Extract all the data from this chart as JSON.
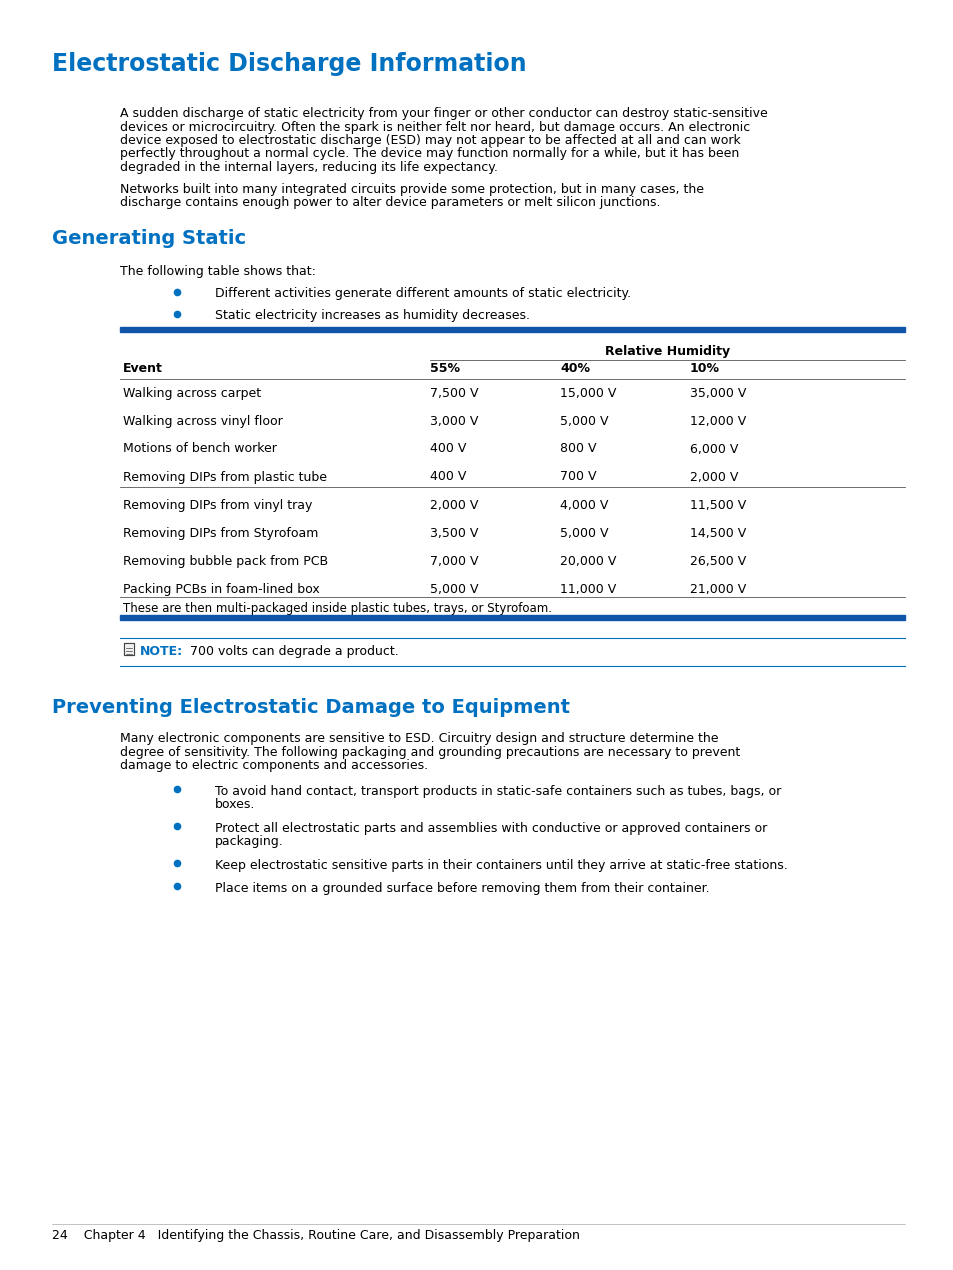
{
  "title": "Electrostatic Discharge Information",
  "title_color": "#0070C0",
  "title_fontsize": 17,
  "bg_color": "#ffffff",
  "body_color": "#000000",
  "body_fontsize": 9.0,
  "section2_title": "Generating Static",
  "section3_title": "Preventing Electrostatic Damage to Equipment",
  "section_title_color": "#0070C0",
  "section_title_fontsize": 14,
  "para1_lines": [
    "A sudden discharge of static electricity from your finger or other conductor can destroy static-sensitive",
    "devices or microcircuitry. Often the spark is neither felt nor heard, but damage occurs. An electronic",
    "device exposed to electrostatic discharge (ESD) may not appear to be affected at all and can work",
    "perfectly throughout a normal cycle. The device may function normally for a while, but it has been",
    "degraded in the internal layers, reducing its life expectancy."
  ],
  "para2_lines": [
    "Networks built into many integrated circuits provide some protection, but in many cases, the",
    "discharge contains enough power to alter device parameters or melt silicon junctions."
  ],
  "table_intro": "The following table shows that:",
  "bullet1": "Different activities generate different amounts of static electricity.",
  "bullet2": "Static electricity increases as humidity decreases.",
  "table_header_label": "Relative Humidity",
  "table_col0": "Event",
  "table_col1": "55%",
  "table_col2": "40%",
  "table_col3": "10%",
  "table_rows": [
    [
      "Walking across carpet",
      "7,500 V",
      "15,000 V",
      "35,000 V"
    ],
    [
      "Walking across vinyl floor",
      "3,000 V",
      "5,000 V",
      "12,000 V"
    ],
    [
      "Motions of bench worker",
      "400 V",
      "800 V",
      "6,000 V"
    ],
    [
      "Removing DIPs from plastic tube",
      "400 V",
      "700 V",
      "2,000 V"
    ],
    [
      "Removing DIPs from vinyl tray",
      "2,000 V",
      "4,000 V",
      "11,500 V"
    ],
    [
      "Removing DIPs from Styrofoam",
      "3,500 V",
      "5,000 V",
      "14,500 V"
    ],
    [
      "Removing bubble pack from PCB",
      "7,000 V",
      "20,000 V",
      "26,500 V"
    ],
    [
      "Packing PCBs in foam-lined box",
      "5,000 V",
      "11,000 V",
      "21,000 V"
    ]
  ],
  "table_footnote": "These are then multi-packaged inside plastic tubes, trays, or Styrofoam.",
  "note_label": "NOTE:",
  "note_text": "  700 volts can degrade a product.",
  "section3_para_lines": [
    "Many electronic components are sensitive to ESD. Circuitry design and structure determine the",
    "degree of sensitivity. The following packaging and grounding precautions are necessary to prevent",
    "damage to electric components and accessories."
  ],
  "section3_bullets": [
    [
      "To avoid hand contact, transport products in static-safe containers such as tubes, bags, or",
      "boxes."
    ],
    [
      "Protect all electrostatic parts and assemblies with conductive or approved containers or",
      "packaging."
    ],
    [
      "Keep electrostatic sensitive parts in their containers until they arrive at static-free stations."
    ],
    [
      "Place items on a grounded surface before removing them from their container."
    ]
  ],
  "footer_text": "24    Chapter 4   Identifying the Chassis, Routine Care, and Disassembly Preparation",
  "blue_color": "#0070C0",
  "divider_color": "#1155AA",
  "gray_color": "#555555"
}
